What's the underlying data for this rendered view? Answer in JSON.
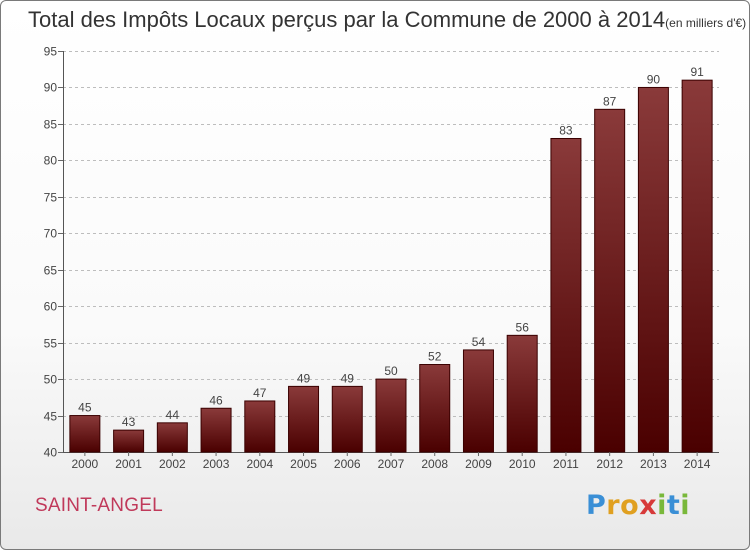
{
  "title": {
    "main": "Total des Impôts Locaux perçus par la Commune de 2000 à 2014",
    "unit": "(en milliers d'€)"
  },
  "commune_name": "SAINT-ANGEL",
  "logo_text": "Proxiti",
  "colors": {
    "bar_top": "#8a3a3a",
    "bar_bottom": "#4a0000",
    "bar_edge": "#3a0000",
    "grid": "#bdbdbd",
    "commune_text": "#c0395a"
  },
  "chart_data": {
    "type": "bar",
    "title": "Total des Impôts Locaux perçus par la Commune de 2000 à 2014 (en milliers d'€)",
    "xlabel": "",
    "ylabel": "",
    "categories": [
      "2000",
      "2001",
      "2002",
      "2003",
      "2004",
      "2005",
      "2006",
      "2007",
      "2008",
      "2009",
      "2010",
      "2011",
      "2012",
      "2013",
      "2014"
    ],
    "values": [
      45,
      43,
      44,
      46,
      47,
      49,
      49,
      50,
      52,
      54,
      56,
      83,
      87,
      90,
      91
    ],
    "ylim": [
      40,
      95
    ],
    "yticks": [
      40,
      45,
      50,
      55,
      60,
      65,
      70,
      75,
      80,
      85,
      90,
      95
    ],
    "grid": "horizontal dashed"
  }
}
